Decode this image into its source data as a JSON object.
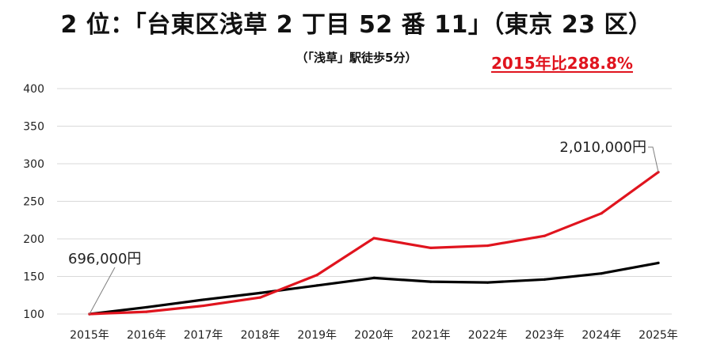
{
  "title": "2 位：「台東区浅草 2 丁目 52 番 11」（東京 23 区）",
  "subtitle": "（「浅草」駅徒歩5分）",
  "highlight": "2015年比288.8%",
  "colors": {
    "primary_series": "#e0141e",
    "secondary_series": "#000000",
    "gridline": "#d9d9d9"
  },
  "chart_data": {
    "type": "line",
    "categories": [
      "2015年",
      "2016年",
      "2017年",
      "2018年",
      "2019年",
      "2020年",
      "2021年",
      "2022年",
      "2023年",
      "2024年",
      "2025年"
    ],
    "yticks": [
      "400",
      "350",
      "300",
      "250",
      "200",
      "150",
      "100"
    ],
    "ylim": [
      100,
      400
    ],
    "grid": true,
    "series": [
      {
        "values": [
          100,
          103,
          111,
          122,
          152,
          201,
          188,
          191,
          204,
          234,
          288.8
        ]
      },
      {
        "values": [
          100,
          109,
          119,
          128,
          138,
          148,
          143,
          142,
          146,
          154,
          168
        ]
      }
    ],
    "annotations": [
      {
        "text": "696,000円",
        "series": 0,
        "point": 0
      },
      {
        "text": "2,010,000円",
        "series": 0,
        "point": 10
      }
    ]
  }
}
